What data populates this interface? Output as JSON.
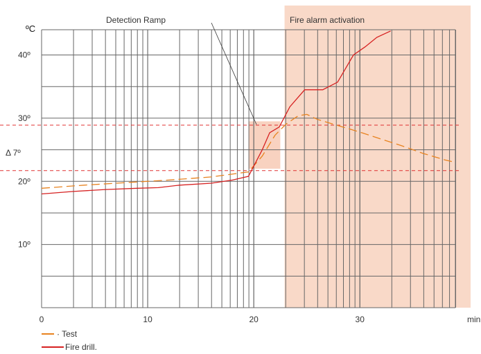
{
  "chart_data": {
    "type": "line",
    "ylabel": "ºC",
    "xlabel": "min",
    "xlim": [
      0,
      39
    ],
    "ylim": [
      0,
      44
    ],
    "x_ticks": [
      {
        "value": 0,
        "label": "0"
      },
      {
        "value": 10,
        "label": "10"
      },
      {
        "value": 20,
        "label": "20"
      },
      {
        "value": 30,
        "label": "30"
      }
    ],
    "y_ticks": [
      {
        "value": 10,
        "label": "10º"
      },
      {
        "value": 20,
        "label": "20º"
      },
      {
        "value": 30,
        "label": "30º"
      },
      {
        "value": 40,
        "label": "40º"
      }
    ],
    "delta_label": "Δ 7º",
    "threshold_lines": [
      28.9,
      21.7
    ],
    "annotations": {
      "detection_ramp": "Detection Ramp",
      "fire_alarm": "Fire alarm activation"
    },
    "alarm_region_x_start": 22.9,
    "ramp_box": {
      "x": [
        19.5,
        22.5
      ],
      "y": [
        22,
        29.5
      ]
    },
    "series": [
      {
        "name": "Test",
        "style": "dashed",
        "color": "#e8821e",
        "points": [
          [
            0,
            18.9
          ],
          [
            4,
            19.4
          ],
          [
            8,
            19.8
          ],
          [
            12,
            20.2
          ],
          [
            16,
            20.7
          ],
          [
            19.5,
            21.5
          ],
          [
            20.8,
            24
          ],
          [
            22,
            27.3
          ],
          [
            23,
            29
          ],
          [
            24.2,
            30.4
          ],
          [
            25,
            30.6
          ],
          [
            26,
            29.8
          ],
          [
            28,
            28.8
          ],
          [
            30,
            27.8
          ],
          [
            32,
            26.7
          ],
          [
            34,
            25.6
          ],
          [
            36,
            24.4
          ],
          [
            38,
            23.4
          ],
          [
            39,
            23
          ]
        ]
      },
      {
        "name": "Fire drill.",
        "style": "solid",
        "color": "#d62020",
        "points": [
          [
            0,
            18
          ],
          [
            3,
            18.4
          ],
          [
            6,
            18.7
          ],
          [
            9,
            18.9
          ],
          [
            11,
            19
          ],
          [
            13,
            19.4
          ],
          [
            16,
            19.7
          ],
          [
            18,
            20.2
          ],
          [
            19.5,
            20.8
          ],
          [
            20.8,
            25
          ],
          [
            21.5,
            27.7
          ],
          [
            22.4,
            28.6
          ],
          [
            23.4,
            31.8
          ],
          [
            24.8,
            34.5
          ],
          [
            26.5,
            34.5
          ],
          [
            27.9,
            35.7
          ],
          [
            29.4,
            40
          ],
          [
            30.5,
            41.3
          ],
          [
            31.6,
            42.8
          ],
          [
            32.9,
            43.8
          ]
        ]
      }
    ],
    "grid": true
  }
}
